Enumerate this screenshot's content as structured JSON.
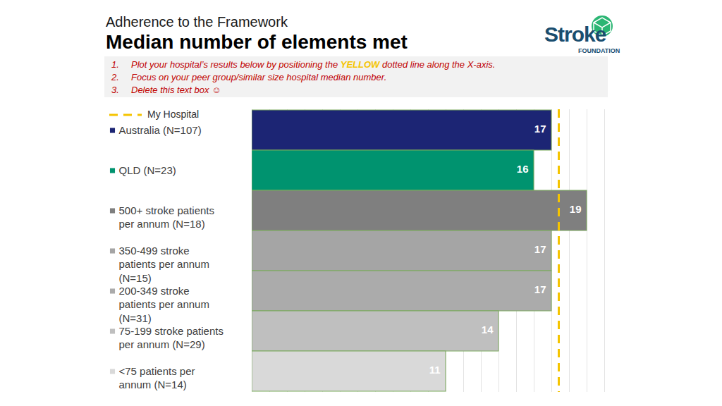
{
  "chart_data": {
    "type": "bar",
    "orientation": "horizontal",
    "subtitle": "Adherence to the Framework",
    "title": "Median number of elements met",
    "annotations": [
      {
        "marker": "1.",
        "parts": [
          "Plot your hospital’s results below by positioning the ",
          "YELLOW",
          " dotted line along the X-axis."
        ]
      },
      {
        "marker": "2.",
        "parts": [
          "Focus on your peer group/similar size hospital median number."
        ]
      },
      {
        "marker": "3.",
        "parts": [
          "Delete this text box ☺"
        ]
      }
    ],
    "logo": {
      "text": "Stroke",
      "subtext": "FOUNDATION"
    },
    "categories": [
      "Australia (N=107)",
      "QLD (N=23)",
      "500+ stroke patients per annum (N=18)",
      "350-499 stroke patients per annum (N=15)",
      "200-349 stroke patients per annum (N=31)",
      "75-199 stroke patients per annum (N=29)",
      "<75 patients per annum (N=14)"
    ],
    "values": [
      17,
      16,
      19,
      17,
      17,
      14,
      11
    ],
    "colors": [
      "#1c2574",
      "#00936f",
      "#7f7f7f",
      "#a5a5a5",
      "#ababab",
      "#bfbfbf",
      "#d9d9d9"
    ],
    "data_labels": true,
    "xlim": [
      0,
      20
    ],
    "xticks": [
      0,
      1,
      2,
      3,
      4,
      5,
      6,
      7,
      8,
      9,
      10,
      11,
      12,
      13,
      14,
      15,
      16,
      17,
      18,
      19,
      20
    ],
    "grid": true,
    "tick_labels": false,
    "reference_line": {
      "name": "My Hospital",
      "value": 17.4,
      "color": "#f5c400"
    }
  }
}
